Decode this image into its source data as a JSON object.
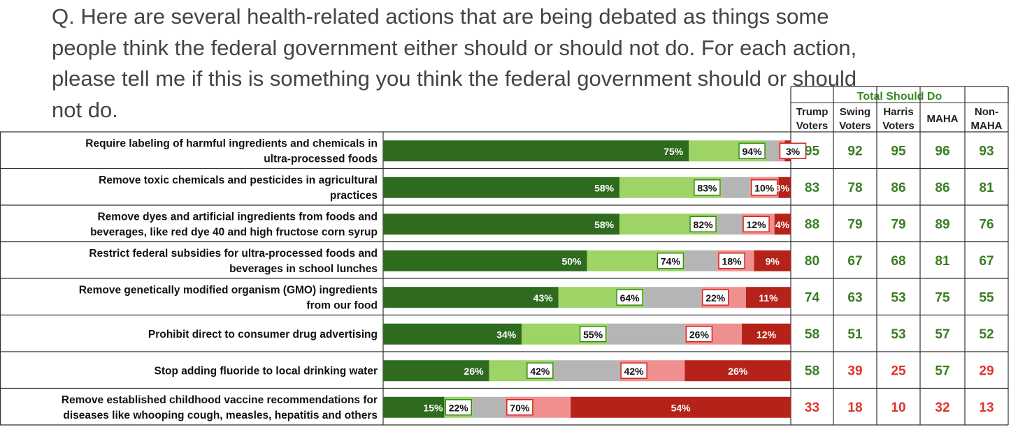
{
  "question": "Q. Here are several health-related actions that are being debated as things some people think the federal government either should or should not do. For each action, please tell me if this is something you think the federal government should or should not do.",
  "table_header": {
    "group_title": "Total Should Do",
    "columns": [
      [
        "Trump",
        "Voters"
      ],
      [
        "Swing",
        "Voters"
      ],
      [
        "Harris",
        "Voters"
      ],
      [
        "MAHA"
      ],
      [
        "Non-",
        "MAHA"
      ]
    ]
  },
  "colors": {
    "strong_should": "#2e6b1f",
    "somewhat_should": "#9ed365",
    "neutral": "#b5b5b5",
    "somewhat_not": "#ef8f8f",
    "strong_not": "#b52219",
    "text_green": "#3a7d22",
    "text_red": "#e0342c",
    "header_green": "#3a8a22"
  },
  "chart_data": {
    "type": "bar",
    "orientation": "horizontal-stacked",
    "rows": [
      {
        "label": [
          "Require labeling of harmful ingredients and chemicals in",
          "ultra-processed foods"
        ],
        "strong_should": 75,
        "total_should": 94,
        "total_not": 3,
        "strong_not": null,
        "strong_not_value": 1.5,
        "columns": [
          95,
          92,
          95,
          96,
          93
        ],
        "col_colors": [
          "green",
          "green",
          "green",
          "green",
          "green"
        ]
      },
      {
        "label": [
          "Remove toxic chemicals and pesticides in agricultural",
          "practices"
        ],
        "strong_should": 58,
        "total_should": 83,
        "total_not": 10,
        "strong_not": 3,
        "columns": [
          83,
          78,
          86,
          86,
          81
        ],
        "col_colors": [
          "green",
          "green",
          "green",
          "green",
          "green"
        ]
      },
      {
        "label": [
          "Remove dyes and artificial ingredients from foods and",
          "beverages, like red dye 40 and high fructose corn syrup"
        ],
        "strong_should": 58,
        "total_should": 82,
        "total_not": 12,
        "strong_not": 4,
        "columns": [
          88,
          79,
          79,
          89,
          76
        ],
        "col_colors": [
          "green",
          "green",
          "green",
          "green",
          "green"
        ]
      },
      {
        "label": [
          "Restrict federal subsidies for ultra-processed foods and",
          "beverages in school lunches"
        ],
        "strong_should": 50,
        "total_should": 74,
        "total_not": 18,
        "strong_not": 9,
        "columns": [
          80,
          67,
          68,
          81,
          67
        ],
        "col_colors": [
          "green",
          "green",
          "green",
          "green",
          "green"
        ]
      },
      {
        "label": [
          "Remove genetically modified organism (GMO) ingredients",
          "from our food"
        ],
        "strong_should": 43,
        "total_should": 64,
        "total_not": 22,
        "strong_not": 11,
        "columns": [
          74,
          63,
          53,
          75,
          55
        ],
        "col_colors": [
          "green",
          "green",
          "green",
          "green",
          "green"
        ]
      },
      {
        "label": [
          "Prohibit direct to consumer drug advertising"
        ],
        "strong_should": 34,
        "total_should": 55,
        "total_not": 26,
        "strong_not": 12,
        "columns": [
          58,
          51,
          53,
          57,
          52
        ],
        "col_colors": [
          "green",
          "green",
          "green",
          "green",
          "green"
        ]
      },
      {
        "label": [
          "Stop adding fluoride to local drinking water"
        ],
        "strong_should": 26,
        "total_should": 42,
        "total_not": 42,
        "strong_not": 26,
        "columns": [
          58,
          39,
          25,
          57,
          29
        ],
        "col_colors": [
          "green",
          "red",
          "red",
          "green",
          "red"
        ]
      },
      {
        "label": [
          "Remove established childhood vaccine recommendations for",
          "diseases like whooping cough, measles, hepatitis and others"
        ],
        "strong_should": 15,
        "total_should": 22,
        "total_not": 70,
        "strong_not": 54,
        "columns": [
          33,
          18,
          10,
          32,
          13
        ],
        "col_colors": [
          "red",
          "red",
          "red",
          "red",
          "red"
        ]
      }
    ]
  }
}
